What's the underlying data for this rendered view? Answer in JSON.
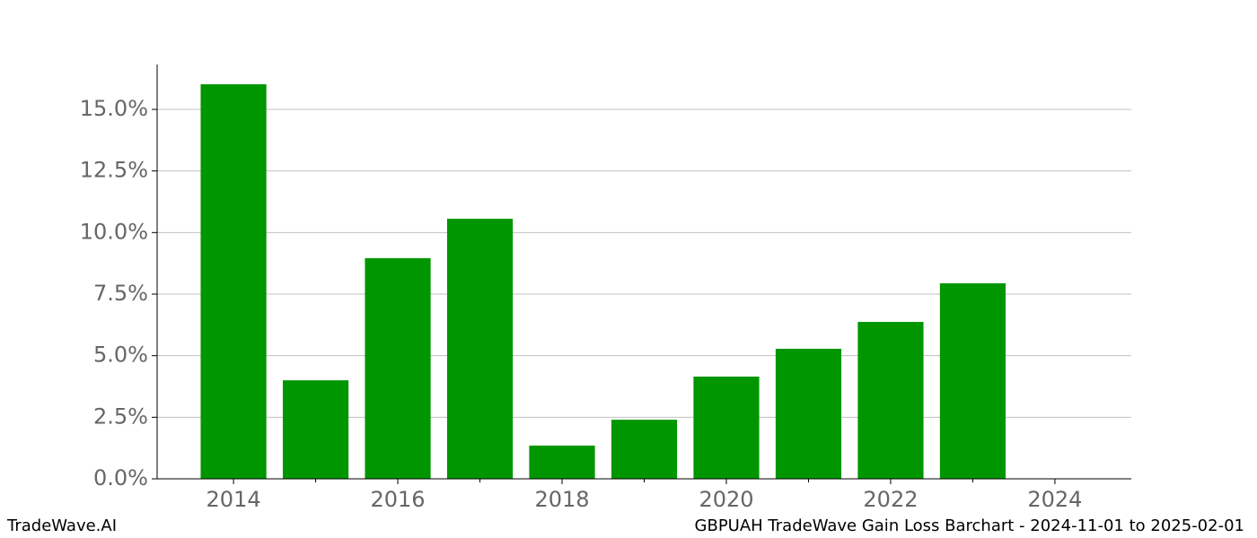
{
  "chart_data": {
    "type": "bar",
    "x": [
      2014,
      2015,
      2016,
      2017,
      2018,
      2019,
      2020,
      2021,
      2022,
      2023
    ],
    "values": [
      16.02,
      4.0,
      8.96,
      10.56,
      1.35,
      2.4,
      4.15,
      5.28,
      6.37,
      7.94
    ],
    "color": "#009600",
    "bar_width": 0.8,
    "xlim": [
      2013.07,
      2024.93
    ],
    "xticks": [
      2014,
      2016,
      2018,
      2020,
      2022,
      2024
    ],
    "xminorticks": [
      2015,
      2017,
      2019,
      2021,
      2023
    ],
    "ylim": [
      0,
      16.82
    ],
    "yticks": [
      {
        "value": 0,
        "label": "0.0%"
      },
      {
        "value": 2.5,
        "label": "2.5%"
      },
      {
        "value": 5,
        "label": "5.0%"
      },
      {
        "value": 7.5,
        "label": "7.5%"
      },
      {
        "value": 10,
        "label": "10.0%"
      },
      {
        "value": 12.5,
        "label": "12.5%"
      },
      {
        "value": 15,
        "label": "15.0%"
      }
    ],
    "grid": true,
    "watermark": "TradeWave.AI",
    "caption": "GBPUAH TradeWave Gain Loss Barchart - 2024-11-01 to 2025-02-01"
  }
}
